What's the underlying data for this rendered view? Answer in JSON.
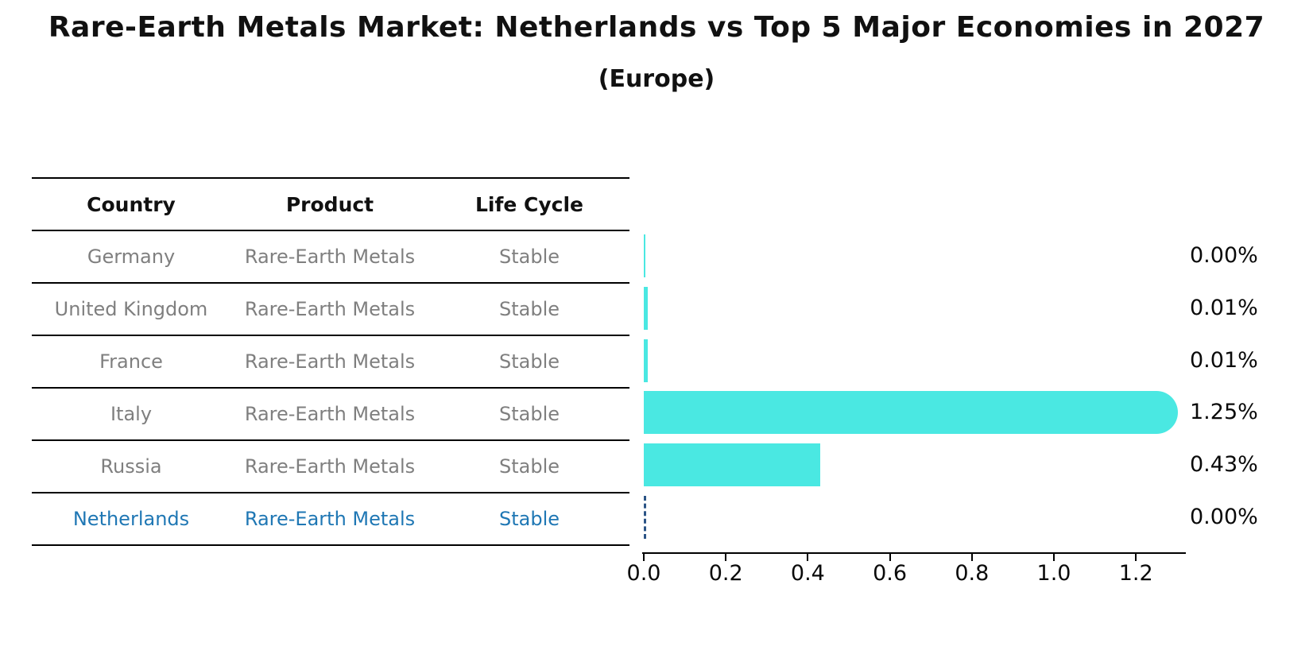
{
  "title": "Rare-Earth Metals Market: Netherlands vs Top 5 Major Economies in 2027",
  "subtitle": "(Europe)",
  "table": {
    "headers": [
      "Country",
      "Product",
      "Life Cycle"
    ],
    "rows": [
      {
        "country": "Germany",
        "product": "Rare-Earth Metals",
        "life_cycle": "Stable",
        "highlighted": false
      },
      {
        "country": "United Kingdom",
        "product": "Rare-Earth Metals",
        "life_cycle": "Stable",
        "highlighted": false
      },
      {
        "country": "France",
        "product": "Rare-Earth Metals",
        "life_cycle": "Stable",
        "highlighted": false
      },
      {
        "country": "Italy",
        "product": "Rare-Earth Metals",
        "life_cycle": "Stable",
        "highlighted": false
      },
      {
        "country": "Russia",
        "product": "Rare-Earth Metals",
        "life_cycle": "Stable",
        "highlighted": false
      },
      {
        "country": "Netherlands",
        "product": "Rare-Earth Metals",
        "life_cycle": "Stable",
        "highlighted": true
      }
    ]
  },
  "chart_data": {
    "type": "bar",
    "orientation": "horizontal",
    "title": "Rare-Earth Metals Market: Netherlands vs Top 5 Major Economies in 2027",
    "subtitle": "(Europe)",
    "categories": [
      "Germany",
      "United Kingdom",
      "France",
      "Italy",
      "Russia",
      "Netherlands"
    ],
    "values": [
      0.0,
      0.01,
      0.01,
      1.25,
      0.43,
      0.0
    ],
    "value_labels": [
      "0.00%",
      "0.01%",
      "0.01%",
      "1.25%",
      "0.43%",
      "0.00%"
    ],
    "highlighted_category": "Netherlands",
    "xlim": [
      0.0,
      1.32
    ],
    "x_ticks": [
      0.0,
      0.2,
      0.4,
      0.6,
      0.8,
      1.0,
      1.2
    ],
    "x_tick_labels": [
      "0.0",
      "0.2",
      "0.4",
      "0.6",
      "0.8",
      "1.0",
      "1.2"
    ],
    "grid": false,
    "legend": false,
    "colors": {
      "bar_fill": "#4ae8e2",
      "highlight_dash": "#2b5486",
      "highlight_text": "#1f77b4",
      "row_text": "#7f7f7f",
      "axis": "#000000",
      "label_text": "#0a0a0a"
    }
  }
}
